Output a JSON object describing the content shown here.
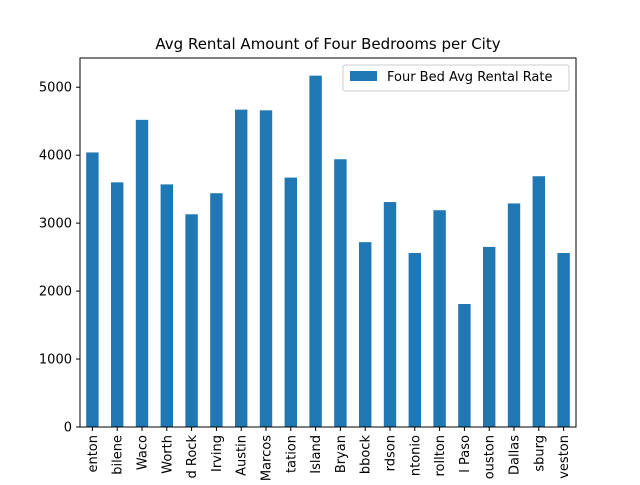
{
  "chart_data": {
    "type": "bar",
    "title": "Avg Rental Amount of Four Bedrooms per City",
    "xlabel": "",
    "ylabel": "",
    "categories": [
      "enton",
      "bilene",
      "Waco",
      "Worth",
      "d Rock",
      "Irving",
      "Austin",
      "Marcos",
      "tation",
      "Island",
      "Bryan",
      "bbock",
      "rdson",
      "ntonio",
      "rollton",
      "l Paso",
      "ouston",
      "Dallas",
      "sburg",
      "veston"
    ],
    "series": [
      {
        "name": "Four Bed Avg Rental Rate",
        "color": "#1f77b4",
        "values": [
          4040,
          3600,
          4520,
          3570,
          3130,
          3440,
          4670,
          4660,
          3670,
          5170,
          3940,
          2720,
          3310,
          2560,
          3190,
          1810,
          2650,
          3290,
          3690,
          2560
        ]
      }
    ],
    "ylim": [
      0,
      5430
    ],
    "yticks": [
      0,
      1000,
      2000,
      3000,
      4000,
      5000
    ],
    "grid": false,
    "legend_position": "top-right"
  }
}
